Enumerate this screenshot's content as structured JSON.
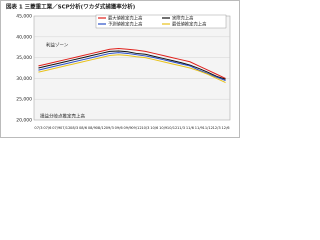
{
  "chart_data": {
    "type": "line",
    "title": "図表 1 三菱重工業／SCP分析(ワカダ式捕獲率分析)",
    "categories": [
      "07/3",
      "07/6",
      "07/9",
      "07/12",
      "08/3",
      "08/6",
      "08/9",
      "08/12",
      "09/3",
      "09/6",
      "09/9",
      "09/12",
      "10/3",
      "10/6",
      "10/9",
      "10/12",
      "11/3",
      "11/6",
      "11/9",
      "11/12",
      "12/3",
      "12/6"
    ],
    "series": [
      {
        "name": "最大値推定売上高",
        "color": "#e0201b",
        "values": [
          33000,
          33500,
          34000,
          34500,
          35000,
          35500,
          36000,
          36500,
          37000,
          37200,
          37000,
          36800,
          36500,
          36000,
          35500,
          35000,
          34500,
          34000,
          33000,
          32000,
          31000,
          30000
        ]
      },
      {
        "name": "実際売上高",
        "color": "#111111",
        "values": [
          32500,
          33000,
          33500,
          34000,
          34500,
          35000,
          35500,
          36000,
          36500,
          36600,
          36400,
          36000,
          35800,
          35300,
          34800,
          34300,
          33800,
          33200,
          32400,
          31500,
          30500,
          29800
        ]
      },
      {
        "name": "予測値推定売上高",
        "color": "#2a4fc9",
        "values": [
          32000,
          32500,
          33000,
          33500,
          34000,
          34500,
          35000,
          35500,
          36000,
          36200,
          36000,
          35700,
          35400,
          35000,
          34500,
          34000,
          33500,
          33000,
          32000,
          31200,
          30300,
          29500
        ]
      },
      {
        "name": "最低値推定売上高",
        "color": "#e8c21a",
        "values": [
          31500,
          32000,
          32500,
          33000,
          33500,
          34000,
          34500,
          35000,
          35500,
          35700,
          35500,
          35200,
          35000,
          34500,
          34000,
          33500,
          33000,
          32500,
          31800,
          31000,
          30000,
          29000
        ]
      }
    ],
    "ylim": [
      20000,
      45000
    ],
    "yticks": [
      {
        "value": 20000,
        "label": "20,000"
      },
      {
        "value": 25000,
        "label": "25,000"
      },
      {
        "value": 30000,
        "label": "30,000"
      },
      {
        "value": 35000,
        "label": "35,000"
      },
      {
        "value": 40000,
        "label": "40,000"
      },
      {
        "value": 45000,
        "label": "45,000"
      }
    ],
    "grid": true,
    "annotations": [
      "利益ゾーン",
      "損益分岐点推定売上高"
    ]
  }
}
